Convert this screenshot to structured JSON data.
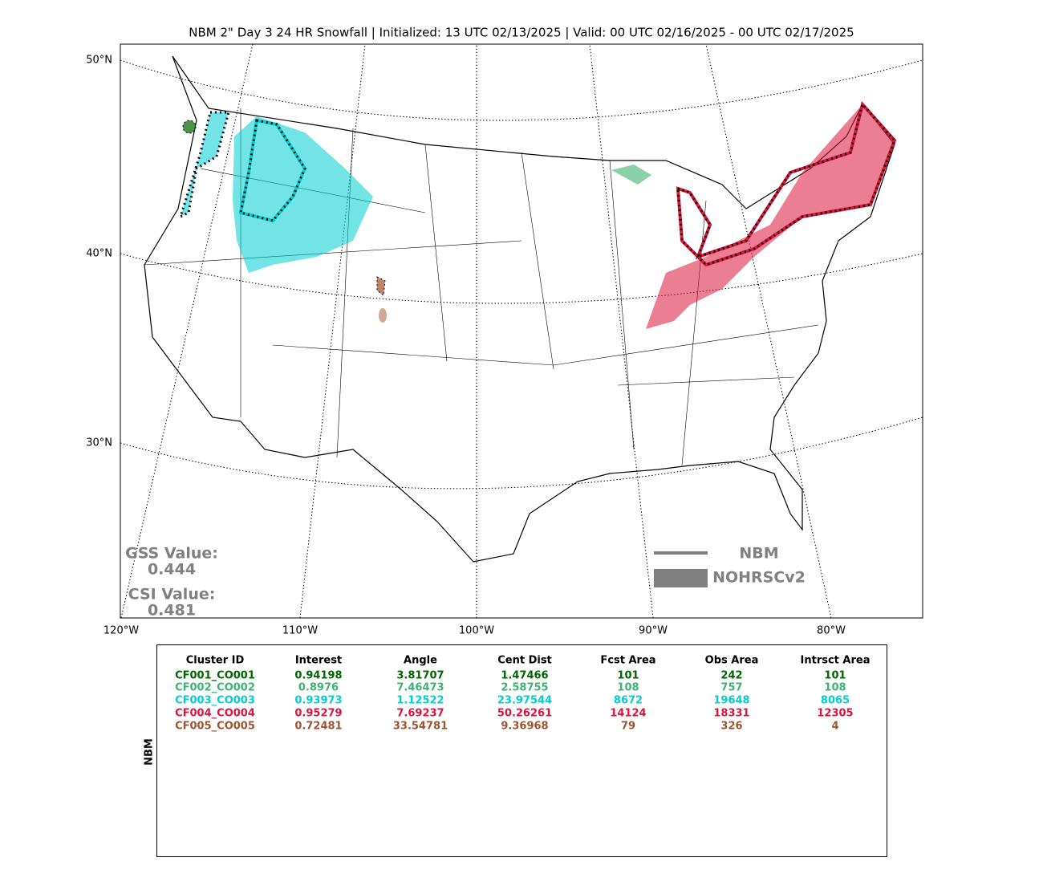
{
  "title": "NBM 2\" Day 3 24 HR Snowfall | Initialized: 13 UTC 02/13/2025 | Valid: 00 UTC 02/16/2025 - 00 UTC 02/17/2025",
  "lat_labels": [
    "50°N",
    "40°N",
    "30°N"
  ],
  "lon_labels": [
    "120°W",
    "110°W",
    "100°W",
    "90°W",
    "80°W"
  ],
  "scores": [
    {
      "label": "GSS Value:",
      "value": "0.444"
    },
    {
      "label": "CSI Value:",
      "value": "0.481"
    }
  ],
  "legend": [
    "NBM",
    "NOHRSCv2"
  ],
  "table": {
    "side_label": "NBM",
    "headers": [
      "Cluster ID",
      "Interest",
      "Angle",
      "Cent Dist",
      "Fcst Area",
      "Obs Area",
      "Intrsct Area"
    ],
    "rows": [
      {
        "color": "#006400",
        "cells": [
          "CF001_CO001",
          "0.94198",
          "3.81707",
          "1.47466",
          "101",
          "242",
          "101"
        ]
      },
      {
        "color": "#3cb371",
        "cells": [
          "CF002_CO002",
          "0.8976",
          "7.46473",
          "2.58755",
          "108",
          "757",
          "108"
        ]
      },
      {
        "color": "#00ced1",
        "cells": [
          "CF003_CO003",
          "0.93973",
          "1.12522",
          "23.97544",
          "8672",
          "19648",
          "8065"
        ]
      },
      {
        "color": "#dc143c",
        "cells": [
          "CF004_CO004",
          "0.95279",
          "7.69237",
          "50.26261",
          "14124",
          "18331",
          "12305"
        ]
      },
      {
        "color": "#a0522d",
        "cells": [
          "CF005_CO005",
          "0.72481",
          "33.54781",
          "9.36968",
          "79",
          "326",
          "4"
        ]
      }
    ]
  }
}
